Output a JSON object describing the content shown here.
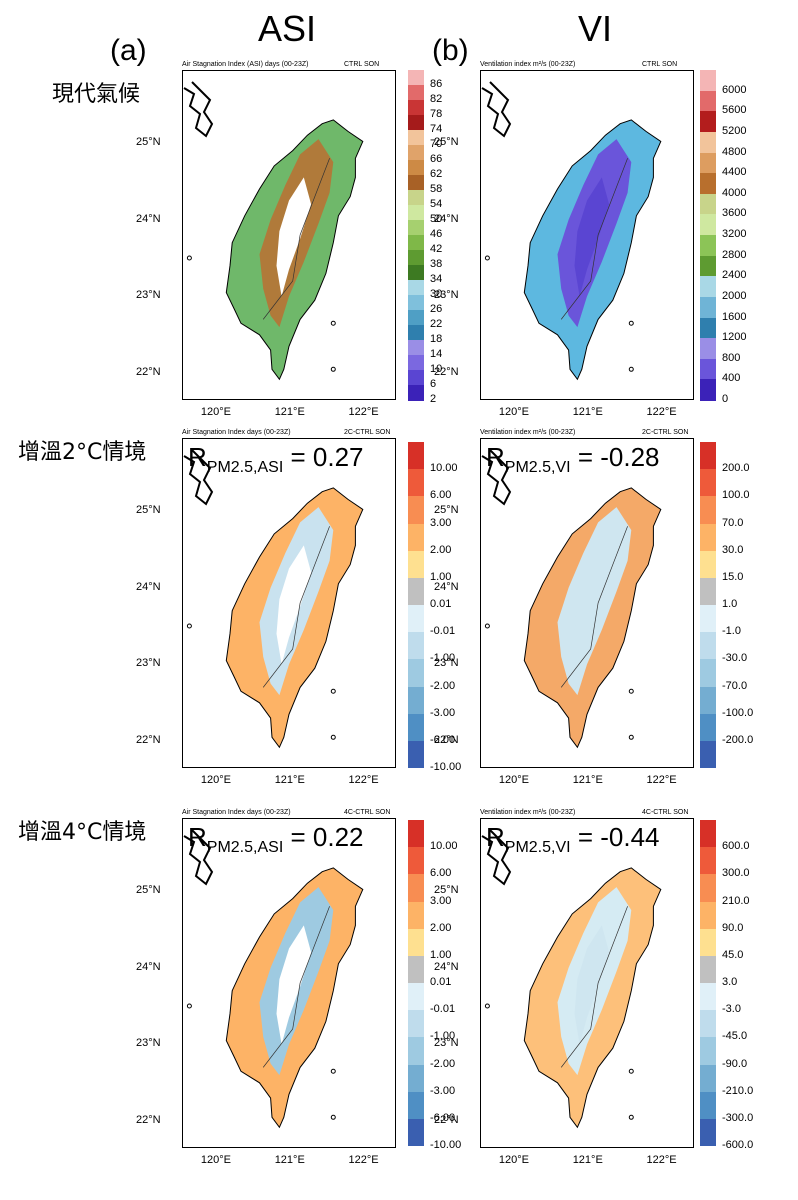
{
  "columns": [
    {
      "label": "ASI",
      "panel_letter": "(a)"
    },
    {
      "label": "VI",
      "panel_letter": "(b)"
    }
  ],
  "rows": [
    {
      "label": "現代氣候"
    },
    {
      "label": "增溫2°C情境"
    },
    {
      "label": "增溫4°C情境"
    }
  ],
  "panels": [
    {
      "title_left": "Air Stagnation Index (ASI) days (00-23Z)",
      "title_right": "CTRL  SON",
      "r_text": "",
      "colorbar": [
        {
          "label": "86",
          "color": "#f4b5b5"
        },
        {
          "label": "82",
          "color": "#e26a6a"
        },
        {
          "label": "78",
          "color": "#c93535"
        },
        {
          "label": "74",
          "color": "#a51b1b"
        },
        {
          "label": "70",
          "color": "#f2c49b"
        },
        {
          "label": "66",
          "color": "#e0a36a"
        },
        {
          "label": "62",
          "color": "#cd8a45"
        },
        {
          "label": "58",
          "color": "#a86126"
        },
        {
          "label": "54",
          "color": "#c8d48a"
        },
        {
          "label": "50",
          "color": "#cfe8a0"
        },
        {
          "label": "46",
          "color": "#a6d06f"
        },
        {
          "label": "42",
          "color": "#7fb848"
        },
        {
          "label": "38",
          "color": "#5e9b31"
        },
        {
          "label": "34",
          "color": "#3d7a22"
        },
        {
          "label": "30",
          "color": "#a9d8e6"
        },
        {
          "label": "26",
          "color": "#7fc0dc"
        },
        {
          "label": "22",
          "color": "#4f9fc5"
        },
        {
          "label": "18",
          "color": "#2f7fae"
        },
        {
          "label": "14",
          "color": "#9a8ee6"
        },
        {
          "label": "10",
          "color": "#7b68e0"
        },
        {
          "label": "6",
          "color": "#5a45d2"
        },
        {
          "label": "2",
          "color": "#3b22b8"
        }
      ]
    },
    {
      "title_left": "Ventilation index m²/s (00-23Z)",
      "title_right": "CTRL  SON",
      "r_text": "",
      "colorbar": [
        {
          "label": "6000",
          "color": "#f4b5b5"
        },
        {
          "label": "5600",
          "color": "#e26a6a"
        },
        {
          "label": "5200",
          "color": "#b31d1d"
        },
        {
          "label": "4800",
          "color": "#f2c49b"
        },
        {
          "label": "4400",
          "color": "#dd9d60"
        },
        {
          "label": "4000",
          "color": "#b86f2d"
        },
        {
          "label": "3600",
          "color": "#c8d48a"
        },
        {
          "label": "3200",
          "color": "#cfe8a0"
        },
        {
          "label": "2800",
          "color": "#8cc457"
        },
        {
          "label": "2400",
          "color": "#5e9b31"
        },
        {
          "label": "2000",
          "color": "#a9d8e6"
        },
        {
          "label": "1600",
          "color": "#6fb4d6"
        },
        {
          "label": "1200",
          "color": "#2f7fae"
        },
        {
          "label": "800",
          "color": "#9a8ee6"
        },
        {
          "label": "400",
          "color": "#6a55da"
        },
        {
          "label": "0",
          "color": "#3b22b8"
        }
      ]
    },
    {
      "title_left": "Air Stagnation Index  days (00-23Z)",
      "title_right": "2C-CTRL  SON",
      "r_sub": "PM2.5,ASI",
      "r_value": " = 0.27",
      "colorbar": [
        {
          "label": "10.00",
          "color": "#d73027"
        },
        {
          "label": "6.00",
          "color": "#ee5a3a"
        },
        {
          "label": "3.00",
          "color": "#f88d52"
        },
        {
          "label": "2.00",
          "color": "#fdb366"
        },
        {
          "label": "1.00",
          "color": "#fee090"
        },
        {
          "label": "0.01",
          "color": "#c0c0c0"
        },
        {
          "label": "-0.01",
          "color": "#e0f0f8"
        },
        {
          "label": "-1.00",
          "color": "#bfdcec"
        },
        {
          "label": "-2.00",
          "color": "#9ecae1"
        },
        {
          "label": "-3.00",
          "color": "#74add1"
        },
        {
          "label": "-6.00",
          "color": "#4f8fc4"
        },
        {
          "label": "-10.00",
          "color": "#3a5fb0"
        }
      ]
    },
    {
      "title_left": "Ventilation index m²/s (00-23Z)",
      "title_right": "2C-CTRL  SON",
      "r_sub": "PM2.5,VI",
      "r_value": " = -0.28",
      "colorbar": [
        {
          "label": "200.0",
          "color": "#d73027"
        },
        {
          "label": "100.0",
          "color": "#ee5a3a"
        },
        {
          "label": "70.0",
          "color": "#f88d52"
        },
        {
          "label": "30.0",
          "color": "#fdb366"
        },
        {
          "label": "15.0",
          "color": "#fee090"
        },
        {
          "label": "1.0",
          "color": "#c0c0c0"
        },
        {
          "label": "-1.0",
          "color": "#e0f0f8"
        },
        {
          "label": "-30.0",
          "color": "#bfdcec"
        },
        {
          "label": "-70.0",
          "color": "#9ecae1"
        },
        {
          "label": "-100.0",
          "color": "#74add1"
        },
        {
          "label": "-200.0",
          "color": "#4f8fc4"
        },
        {
          "label": "",
          "color": "#3a5fb0"
        }
      ]
    },
    {
      "title_left": "Air Stagnation Index  days (00-23Z)",
      "title_right": "4C-CTRL  SON",
      "r_sub": "PM2.5,ASI",
      "r_value": " = 0.22",
      "colorbar": [
        {
          "label": "10.00",
          "color": "#d73027"
        },
        {
          "label": "6.00",
          "color": "#ee5a3a"
        },
        {
          "label": "3.00",
          "color": "#f88d52"
        },
        {
          "label": "2.00",
          "color": "#fdb366"
        },
        {
          "label": "1.00",
          "color": "#fee090"
        },
        {
          "label": "0.01",
          "color": "#c0c0c0"
        },
        {
          "label": "-0.01",
          "color": "#e0f0f8"
        },
        {
          "label": "-1.00",
          "color": "#bfdcec"
        },
        {
          "label": "-2.00",
          "color": "#9ecae1"
        },
        {
          "label": "-3.00",
          "color": "#74add1"
        },
        {
          "label": "-6.00",
          "color": "#4f8fc4"
        },
        {
          "label": "-10.00",
          "color": "#3a5fb0"
        }
      ]
    },
    {
      "title_left": "Ventilation index m²/s (00-23Z)",
      "title_right": "4C-CTRL  SON",
      "r_sub": "PM2.5,VI",
      "r_value": " = -0.44",
      "colorbar": [
        {
          "label": "600.0",
          "color": "#d73027"
        },
        {
          "label": "300.0",
          "color": "#ee5a3a"
        },
        {
          "label": "210.0",
          "color": "#f88d52"
        },
        {
          "label": "90.0",
          "color": "#fdb366"
        },
        {
          "label": "45.0",
          "color": "#fee090"
        },
        {
          "label": "3.0",
          "color": "#c0c0c0"
        },
        {
          "label": "-3.0",
          "color": "#e0f0f8"
        },
        {
          "label": "-45.0",
          "color": "#bfdcec"
        },
        {
          "label": "-90.0",
          "color": "#9ecae1"
        },
        {
          "label": "-210.0",
          "color": "#74add1"
        },
        {
          "label": "-300.0",
          "color": "#4f8fc4"
        },
        {
          "label": "-600.0",
          "color": "#3a5fb0"
        }
      ]
    }
  ],
  "axes": {
    "lat_labels": [
      "25°N",
      "24°N",
      "23°N",
      "22°N"
    ],
    "lon_labels": [
      "120°E",
      "121°E",
      "122°E"
    ]
  }
}
